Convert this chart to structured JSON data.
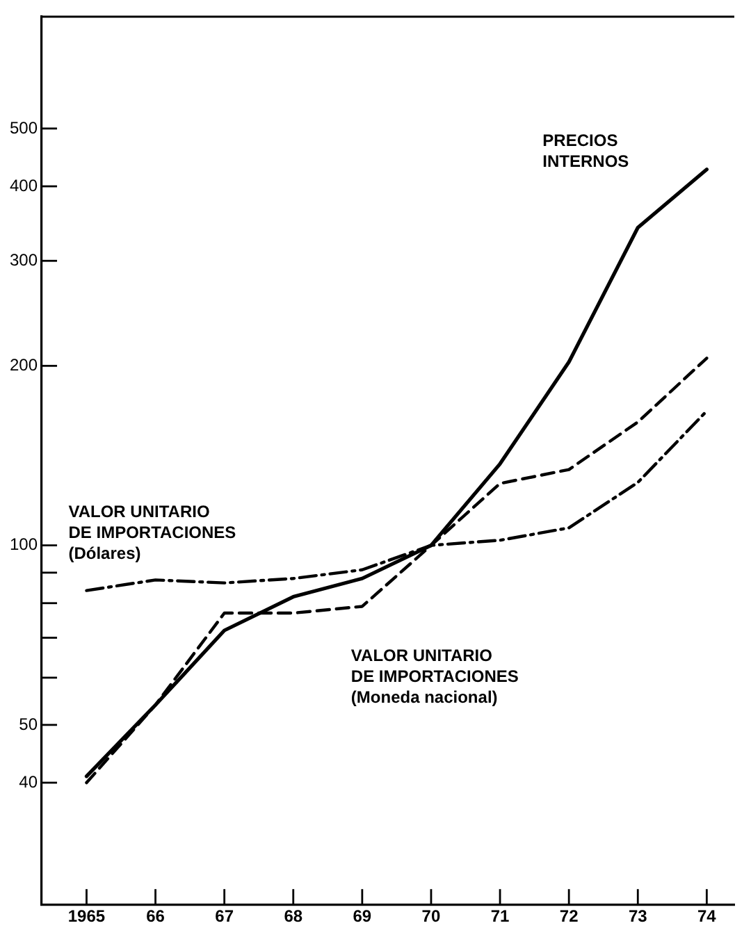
{
  "chart_data": {
    "type": "line",
    "x": [
      1965,
      1966,
      1967,
      1968,
      1969,
      1970,
      1971,
      1972,
      1973,
      1974
    ],
    "xlim": [
      1964.35,
      1974.4
    ],
    "xticks": [
      1965,
      {
        "value": 1966,
        "label": "66"
      },
      {
        "value": 1967,
        "label": "67"
      },
      {
        "value": 1968,
        "label": "68"
      },
      {
        "value": 1969,
        "label": "69"
      },
      {
        "value": 1970,
        "label": "70"
      },
      {
        "value": 1971,
        "label": "71"
      },
      {
        "value": 1972,
        "label": "72"
      },
      {
        "value": 1973,
        "label": "73"
      },
      {
        "value": 1974,
        "label": "74"
      }
    ],
    "ylim": [
      25,
      770
    ],
    "yticks": [
      40,
      50,
      {
        "value": 60,
        "label": null
      },
      {
        "value": 70,
        "label": null
      },
      {
        "value": 80,
        "label": null
      },
      {
        "value": 90,
        "label": null
      },
      100,
      200,
      300,
      400,
      500
    ],
    "log": "y",
    "grid": false,
    "legend": false,
    "marker": "none",
    "series": [
      {
        "name": "PRECIOS\nINTERNOS",
        "color": "#000000",
        "line_style": "solid",
        "values": [
          41,
          54,
          72,
          82,
          88,
          100,
          137,
          203,
          341,
          427
        ]
      },
      {
        "name": "VALOR UNITARIO\nDE IMPORTACIONES\n(Moneda nacional)",
        "color": "#000000",
        "line_style": "dashed",
        "values": [
          40,
          54,
          77,
          77,
          79,
          100,
          127,
          134,
          161,
          206
        ]
      },
      {
        "name": "VALOR UNITARIO\nDE IMPORTACIONES\n(Dólares)",
        "color": "#000000",
        "line_style": "dashdot",
        "values": [
          84,
          87.5,
          86.5,
          88,
          91,
          100,
          102,
          107,
          127.5,
          168
        ]
      }
    ]
  }
}
